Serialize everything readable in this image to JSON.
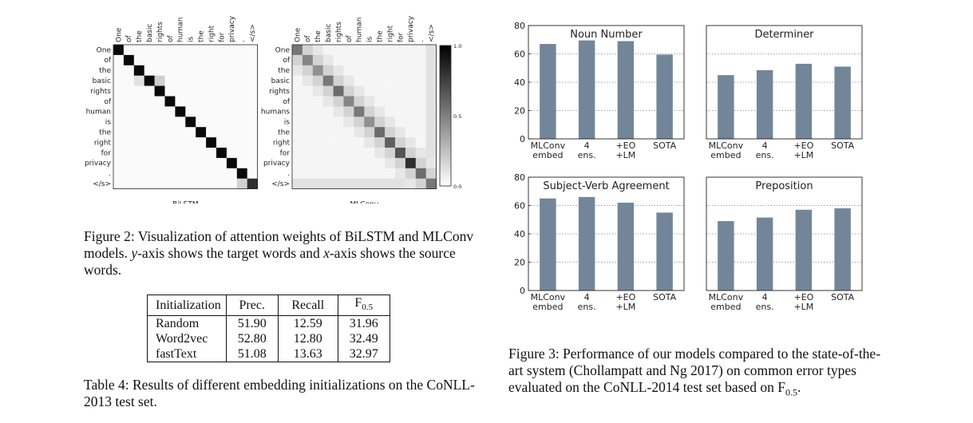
{
  "figure2": {
    "tokens_x": [
      "One",
      "of",
      "the",
      "basic",
      "rights",
      "of",
      "human",
      "is",
      "the",
      "right",
      "for",
      "privacy",
      ".",
      "</s>"
    ],
    "tokens_y_left": [
      "One",
      "of",
      "the",
      "basic",
      "rights",
      "of",
      "human",
      "is",
      "the",
      "right",
      "for",
      "privacy",
      ".",
      "</s>"
    ],
    "tokens_y_right": [
      "One",
      "of",
      "the",
      "basic",
      "rights",
      "of",
      "humans",
      "is",
      "the",
      "right",
      "for",
      "privacy",
      ".",
      "</s>"
    ],
    "left_title": "BiLSTM",
    "right_title": "MLConv",
    "colorbar_ticks": [
      "1.0",
      "0.5",
      "0.0"
    ],
    "caption": "Figure 2: Visualization of attention weights of BiLSTM and MLConv models. y-axis shows the target words and x-axis shows the source words."
  },
  "table4": {
    "headers": [
      "Initialization",
      "Prec.",
      "Recall",
      "F0.5"
    ],
    "rows": [
      [
        "Random",
        "51.90",
        "12.59",
        "31.96"
      ],
      [
        "Word2vec",
        "52.80",
        "12.80",
        "32.49"
      ],
      [
        "fastText",
        "51.08",
        "13.63",
        "32.97"
      ]
    ],
    "caption": "Table 4: Results of different embedding initializations on the CoNLL-2013 test set."
  },
  "chart_data": [
    {
      "type": "bar",
      "title": "Noun Number",
      "categories": [
        "MLConv embed",
        "4 ens.",
        "+EO +LM",
        "SOTA"
      ],
      "values": [
        67,
        69.5,
        69,
        59.5
      ],
      "ylim": [
        0,
        80
      ],
      "yticks": [
        0,
        20,
        40,
        60,
        80
      ],
      "color": "#738699"
    },
    {
      "type": "bar",
      "title": "Determiner",
      "categories": [
        "MLConv embed",
        "4 ens.",
        "+EO +LM",
        "SOTA"
      ],
      "values": [
        45,
        48.5,
        53,
        51
      ],
      "ylim": [
        0,
        80
      ],
      "yticks": [
        0,
        20,
        40,
        60,
        80
      ],
      "color": "#738699"
    },
    {
      "type": "bar",
      "title": "Subject-Verb Agreement",
      "categories": [
        "MLConv embed",
        "4 ens.",
        "+EO +LM",
        "SOTA"
      ],
      "values": [
        65,
        66,
        62,
        55
      ],
      "ylim": [
        0,
        80
      ],
      "yticks": [
        0,
        20,
        40,
        60,
        80
      ],
      "color": "#738699"
    },
    {
      "type": "bar",
      "title": "Preposition",
      "categories": [
        "MLConv embed",
        "4 ens.",
        "+EO +LM",
        "SOTA"
      ],
      "values": [
        49,
        51.5,
        57,
        58
      ],
      "ylim": [
        0,
        80
      ],
      "yticks": [
        0,
        20,
        40,
        60,
        80
      ],
      "color": "#738699"
    }
  ],
  "figure3": {
    "caption": "Figure 3: Performance of our models compared to the state-of-the-art system (Chollampatt and Ng 2017) on common error types evaluated on the CoNLL-2014 test set based on F0.5."
  }
}
